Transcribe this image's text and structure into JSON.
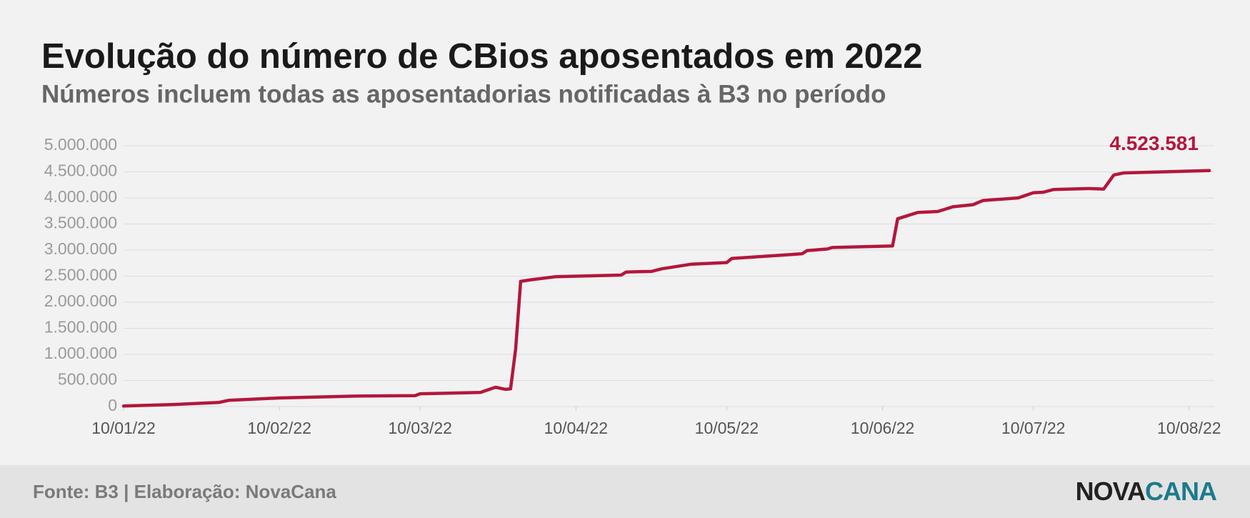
{
  "chart_data": {
    "type": "line",
    "title": "Evolução do número de CBios aposentados em 2022",
    "subtitle": "Números incluem todas as aposentadorias notificadas à B3 no período",
    "source": "Fonte: B3 | Elaboração: NovaCana",
    "logo": [
      "NOVA",
      "CANA"
    ],
    "x": [
      "2022-01-10",
      "2022-01-20",
      "2022-01-29",
      "2022-01-31",
      "2022-02-10",
      "2022-02-25",
      "2022-03-09",
      "2022-03-10",
      "2022-03-22",
      "2022-03-25",
      "2022-03-27",
      "2022-03-28",
      "2022-03-29",
      "2022-03-30",
      "2022-04-01",
      "2022-04-06",
      "2022-04-19",
      "2022-04-20",
      "2022-04-25",
      "2022-04-27",
      "2022-05-03",
      "2022-05-10",
      "2022-05-11",
      "2022-05-22",
      "2022-05-25",
      "2022-05-26",
      "2022-05-30",
      "2022-05-31",
      "2022-06-12",
      "2022-06-13",
      "2022-06-17",
      "2022-06-21",
      "2022-06-24",
      "2022-06-28",
      "2022-06-30",
      "2022-07-07",
      "2022-07-10",
      "2022-07-12",
      "2022-07-14",
      "2022-07-21",
      "2022-07-24",
      "2022-07-26",
      "2022-07-28",
      "2022-08-01",
      "2022-08-14"
    ],
    "series": [
      {
        "name": "CBios aposentados",
        "color": "#b3173b",
        "values": [
          10000,
          40000,
          80000,
          120000,
          165000,
          200000,
          210000,
          245000,
          270000,
          370000,
          330000,
          340000,
          1100000,
          2400000,
          2430000,
          2490000,
          2520000,
          2580000,
          2590000,
          2640000,
          2730000,
          2760000,
          2840000,
          2910000,
          2930000,
          2990000,
          3020000,
          3050000,
          3080000,
          3600000,
          3720000,
          3740000,
          3830000,
          3870000,
          3950000,
          4000000,
          4100000,
          4110000,
          4160000,
          4180000,
          4170000,
          4440000,
          4480000,
          4490000,
          4523581
        ],
        "last_value_label": "4.523.581"
      }
    ],
    "xlim": [
      "2022-01-10",
      "2022-08-15"
    ],
    "xticks": [
      {
        "value": "2022-01-10",
        "label": "10/01/22"
      },
      {
        "value": "2022-02-10",
        "label": "10/02/22"
      },
      {
        "value": "2022-03-10",
        "label": "10/03/22"
      },
      {
        "value": "2022-04-10",
        "label": "10/04/22"
      },
      {
        "value": "2022-05-10",
        "label": "10/05/22"
      },
      {
        "value": "2022-06-10",
        "label": "10/06/22"
      },
      {
        "value": "2022-07-10",
        "label": "10/07/22"
      },
      {
        "value": "2022-08-10",
        "label": "10/08/22"
      }
    ],
    "ylim": [
      0,
      5000000
    ],
    "yticks": [
      0,
      {
        "value": 500000,
        "label": "500.000"
      },
      {
        "value": 1000000,
        "label": "1.000.000"
      },
      {
        "value": 1500000,
        "label": "1.500.000"
      },
      {
        "value": 2000000,
        "label": "2.000.000"
      },
      {
        "value": 2500000,
        "label": "2.500.000"
      },
      {
        "value": 3000000,
        "label": "3.000.000"
      },
      {
        "value": 3500000,
        "label": "3.500.000"
      },
      {
        "value": 4000000,
        "label": "4.000.000"
      },
      {
        "value": 4500000,
        "label": "4.500.000"
      },
      {
        "value": 5000000,
        "label": "5.000.000"
      }
    ],
    "grid": true
  }
}
